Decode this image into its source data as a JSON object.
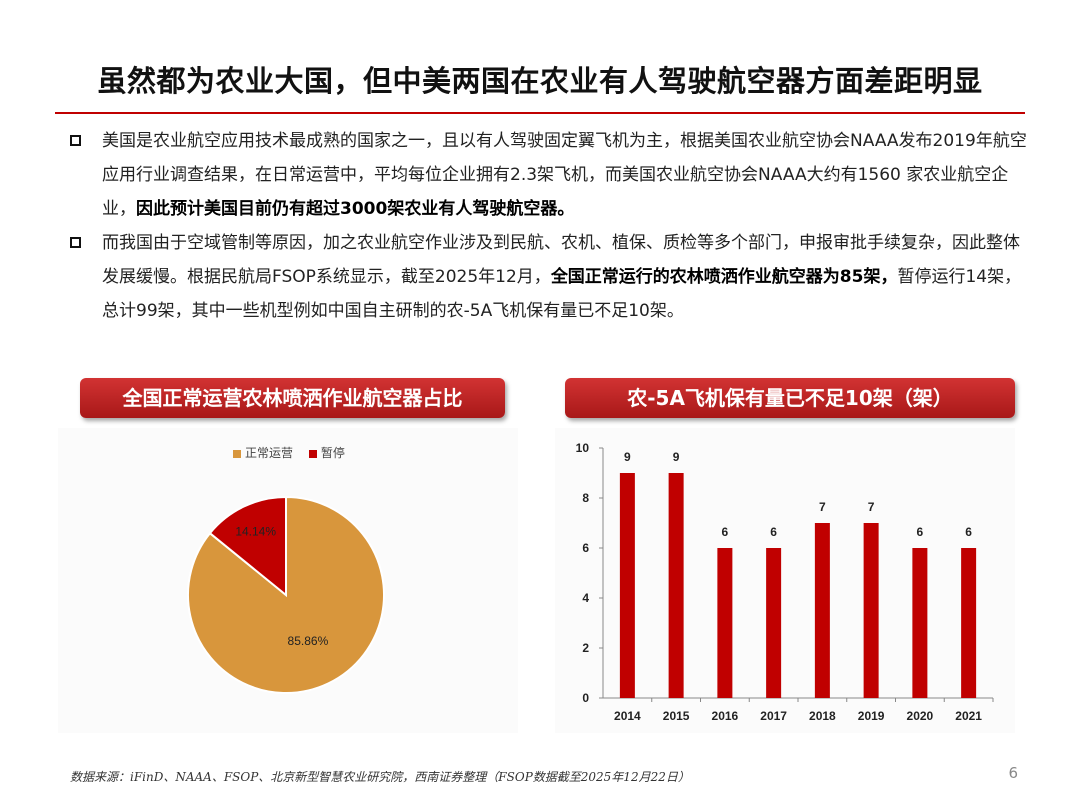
{
  "title": "虽然都为农业大国，但中美两国在农业有人驾驶航空器方面差距明显",
  "bullets": [
    {
      "text1": "美国是农业航空应用技术最成熟的国家之一，且以有人驾驶固定翼飞机为主，根据美国农业航空协会NAAA发布2019年航空应用行业调查结果，在日常运营中，平均每位企业拥有2.3架飞机，而美国农业航空协会NAAA大约有1560 家农业航空企业，",
      "bold": "因此预计美国目前仍有超过3000架农业有人驾驶航空器。",
      "text2": ""
    },
    {
      "text1": "而我国由于空域管制等原因，加之农业航空作业涉及到民航、农机、植保、质检等多个部门，申报审批手续复杂，因此整体发展缓慢。根据民航局FSOP系统显示，截至2025年12月，",
      "bold": "全国正常运行的农林喷洒作业航空器为85架，",
      "text2": "暂停运行14架，总计99架，其中一些机型例如中国自主研制的农-5A飞机保有量已不足10架。"
    }
  ],
  "pie_banner": "全国正常运营农林喷洒作业航空器占比",
  "bar_banner": "农-5A飞机保有量已不足10架（架）",
  "footer": "数据来源：iFinD、NAAA、FSOP、北京新型智慧农业研究院，西南证券整理（FSOP数据截至2025年12月22日）",
  "page_number": "6",
  "colors": {
    "accent": "#c00000",
    "pie_normal": "#d8963c",
    "pie_paused": "#c00000",
    "bar": "#c00000"
  },
  "chart_data": [
    {
      "type": "pie",
      "categories": [
        "正常运营",
        "暂停"
      ],
      "values": [
        85.86,
        14.14
      ],
      "labels": [
        "85.86%",
        "14.14%"
      ],
      "legend": "top"
    },
    {
      "type": "bar",
      "categories": [
        "2014",
        "2015",
        "2016",
        "2017",
        "2018",
        "2019",
        "2020",
        "2021"
      ],
      "values": [
        9,
        9,
        6,
        6,
        7,
        7,
        6,
        6
      ],
      "ylim": [
        0,
        10
      ],
      "yticks": [
        0,
        2,
        4,
        6,
        8,
        10
      ],
      "grid": false
    }
  ]
}
